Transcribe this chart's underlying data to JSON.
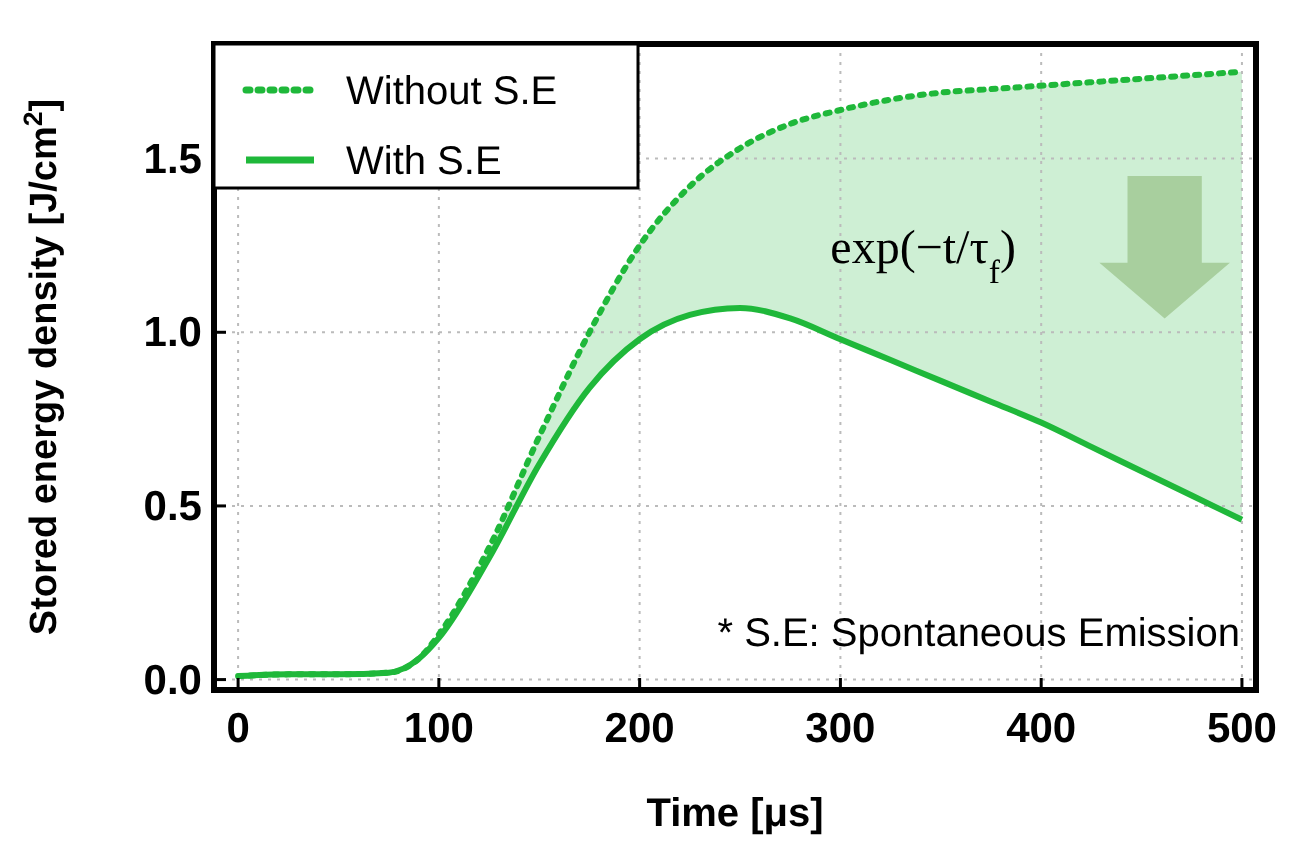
{
  "chart_data": {
    "type": "line",
    "xlabel": "Time [μs]",
    "ylabel": "Stored energy density [J/cm$^{2}$]",
    "x": [
      0,
      25,
      50,
      75,
      90,
      100,
      125,
      150,
      175,
      200,
      225,
      250,
      275,
      300,
      325,
      350,
      375,
      400,
      425,
      450,
      475,
      500
    ],
    "xlim": [
      -12,
      507
    ],
    "ylim": [
      -0.03,
      1.83
    ],
    "xticks": [
      0,
      100,
      200,
      300,
      400,
      500
    ],
    "yticks": [
      {
        "value": 0,
        "label": "0.0"
      },
      0.5,
      {
        "value": 1,
        "label": "1.0"
      },
      1.5
    ],
    "grid": true,
    "legend": "top left",
    "marker": "none",
    "series": [
      {
        "name": "Without S.E",
        "color": "#1fb83a",
        "line_style": "dotted",
        "values": [
          0.01,
          0.015,
          0.015,
          0.02,
          0.06,
          0.13,
          0.38,
          0.7,
          1.0,
          1.25,
          1.42,
          1.53,
          1.6,
          1.64,
          1.67,
          1.69,
          1.7,
          1.71,
          1.72,
          1.73,
          1.74,
          1.75
        ],
        "lower": [
          0.01,
          0.015,
          0.015,
          0.02,
          0.06,
          0.12,
          0.35,
          0.62,
          0.84,
          0.98,
          1.05,
          1.07,
          1.04,
          0.98,
          0.92,
          0.86,
          0.8,
          0.74,
          0.67,
          0.6,
          0.53,
          0.46
        ],
        "upper": [
          0.01,
          0.015,
          0.015,
          0.02,
          0.06,
          0.13,
          0.38,
          0.7,
          1.0,
          1.25,
          1.42,
          1.53,
          1.6,
          1.64,
          1.67,
          1.69,
          1.7,
          1.71,
          1.72,
          1.73,
          1.74,
          1.75
        ]
      },
      {
        "name": "With S.E",
        "color": "#1fb83a",
        "line_style": "solid",
        "values": [
          0.01,
          0.015,
          0.015,
          0.02,
          0.06,
          0.12,
          0.35,
          0.62,
          0.84,
          0.98,
          1.05,
          1.07,
          1.04,
          0.98,
          0.92,
          0.86,
          0.8,
          0.74,
          0.67,
          0.6,
          0.53,
          0.46
        ]
      }
    ],
    "annotations": [
      "exp(−t/τ$_{f}$)",
      "* S.E: Spontaneous Emission"
    ]
  }
}
